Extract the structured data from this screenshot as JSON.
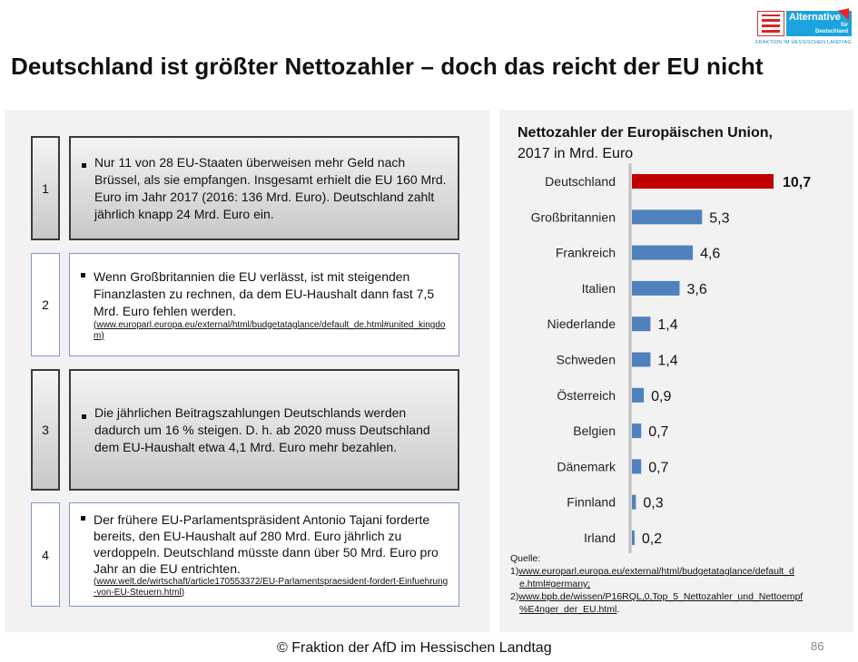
{
  "logo": {
    "brand_line1": "Alternative",
    "brand_line2": "für",
    "brand_line3": "Deutschland",
    "subtitle": "FRAKTION IM HESSISCHEN LANDTAG"
  },
  "title": "Deutschland ist größter Nettozahler – doch das reicht der EU nicht",
  "items": [
    {
      "number": "1",
      "text": "Nur 11 von 28 EU-Staaten überweisen mehr Geld nach Brüssel, als sie empfangen. Insgesamt erhielt die EU 160 Mrd. Euro im Jahr 2017 (2016: 136 Mrd. Euro). Deutschland zahlt jährlich knapp 24 Mrd. Euro ein.",
      "source": ""
    },
    {
      "number": "2",
      "text": "Wenn Großbritannien die EU verlässt, ist mit steigenden Finanzlasten zu rechnen, da dem EU-Haushalt dann fast 7,5 Mrd. Euro fehlen werden.",
      "source": "www.europarl.europa.eu/external/html/budgetataglance/default_de.html#united_kingdom"
    },
    {
      "number": "3",
      "text": "Die jährlichen Beitragszahlungen Deutschlands werden dadurch um 16 % steigen. D. h. ab 2020 muss Deutschland dem EU-Haushalt etwa 4,1 Mrd. Euro mehr bezahlen.",
      "source": ""
    },
    {
      "number": "4",
      "text": "Der frühere EU-Parlamentspräsident Antonio Tajani forderte bereits, den EU-Haushalt auf 280 Mrd. Euro jährlich zu verdoppeln. Deutschland müsste dann über 50 Mrd. Euro pro Jahr an die EU entrichten.",
      "source": "www.welt.de/wirtschaft/article170553372/EU-Parlamentspraesident-fordert-Einfuehrung-von-EU-Steuern.html"
    }
  ],
  "chart_data": {
    "type": "bar",
    "orientation": "horizontal",
    "title": "Nettozahler der Europäischen Union,",
    "subtitle": "2017 in Mrd. Euro",
    "categories": [
      "Deutschland",
      "Großbritannien",
      "Frankreich",
      "Italien",
      "Niederlande",
      "Schweden",
      "Österreich",
      "Belgien",
      "Dänemark",
      "Finnland",
      "Irland"
    ],
    "values": [
      10.7,
      5.3,
      4.6,
      3.6,
      1.4,
      1.4,
      0.9,
      0.7,
      0.7,
      0.3,
      0.2
    ],
    "labels": [
      "10,7",
      "5,3",
      "4,6",
      "3,6",
      "1,4",
      "1,4",
      "0,9",
      "0,7",
      "0,7",
      "0,3",
      "0,2"
    ],
    "highlight_index": 0,
    "colors": {
      "highlight": "#c00000",
      "default": "#4f81bd"
    },
    "xlim": [
      0,
      10.7
    ],
    "grid": false
  },
  "sources": {
    "heading": "Quelle:",
    "entries": [
      {
        "prefix": "1)",
        "url_line1": "www.europarl.europa.eu/external/html/budgetataglance/default_d",
        "url_line2": "e.html#germany;"
      },
      {
        "prefix": "2)",
        "url_line1": "www.bpb.de/wissen/P16RQL,0,Top_5_Nettozahler_und_Nettoempf",
        "url_line2": "%E4nger_der_EU.html",
        "suffix": "."
      }
    ]
  },
  "footer": "© Fraktion der AfD im Hessischen Landtag",
  "page_number": "86"
}
